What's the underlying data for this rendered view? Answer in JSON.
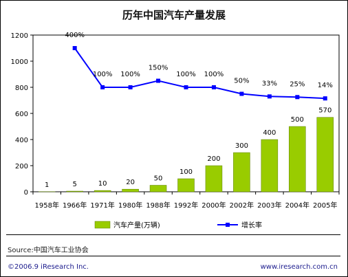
{
  "chart_data": {
    "type": "bar",
    "title": "历年中国汽车产量发展",
    "categories": [
      "1958年",
      "1966年",
      "1971年",
      "1980年",
      "1988年",
      "1992年",
      "2000年",
      "2002年",
      "2003年",
      "2004年",
      "2005年"
    ],
    "series": [
      {
        "name": "汽车产量(万辆)",
        "type": "bar",
        "color": "#99cc00",
        "values": [
          1,
          5,
          10,
          20,
          50,
          100,
          200,
          300,
          400,
          500,
          570
        ],
        "labels": [
          "1",
          "5",
          "10",
          "20",
          "50",
          "100",
          "200",
          "300",
          "400",
          "500",
          "570"
        ]
      },
      {
        "name": "增长率",
        "type": "line",
        "color": "#0000ff",
        "values_on_left_axis": [
          null,
          1100,
          800,
          800,
          850,
          800,
          800,
          750,
          730,
          725,
          715
        ],
        "labels": [
          "",
          "400%",
          "100%",
          "100%",
          "150%",
          "100%",
          "100%",
          "50%",
          "33%",
          "25%",
          "14%"
        ]
      }
    ],
    "yticks": [
      "0",
      "200",
      "400",
      "600",
      "800",
      "1000",
      "1200"
    ],
    "ylim": [
      0,
      1200
    ],
    "grid": false,
    "legend": "bottom"
  },
  "source": "Source:中国汽车工业协会",
  "copyright": "©2006.9 iResearch Inc.",
  "website": "www.iresearch.com.cn"
}
